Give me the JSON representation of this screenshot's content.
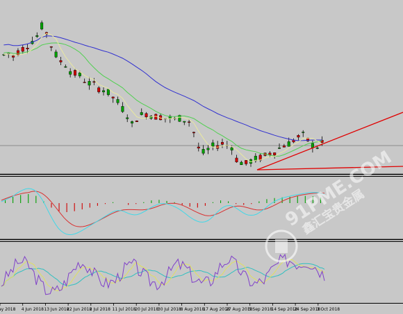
{
  "colors": {
    "background": "#c8c8c8",
    "separator": "#000000",
    "candle_up": "#00a000",
    "candle_down": "#d00000",
    "ma_fast": "#e8e8a0",
    "ma_mid": "#50d050",
    "ma_slow": "#3030d0",
    "trendline": "#e00000",
    "hline": "#8c8c8c",
    "macd_signal": "#d83030",
    "macd_line": "#40d8e8",
    "stoch_k": "#8040c8",
    "stoch_d": "#e0e060",
    "stoch_mid": "#30c0c0"
  },
  "watermark": {
    "text_latin": "91PME.COM",
    "text_cjk": "鑫汇宝贵金属",
    "logo_icon": "91pme-logo-icon"
  },
  "x_axis": {
    "labels": [
      "ay 2018",
      "4 Jun 2018",
      "13 Jun 2018",
      "22 Jun 2018",
      "2 Jul 2018",
      "11 Jul 2018",
      "20 Jul 2018",
      "30 Jul 2018",
      "8 Aug 2018",
      "17 Aug 2018",
      "27 Aug 2018",
      "5 Sep 2018",
      "14 Sep 2018",
      "24 Sep 2018",
      "3 Oct 2018"
    ]
  },
  "chart_data": [
    {
      "type": "candlestick",
      "panel": "price",
      "overlays": [
        "moving-average-fast",
        "moving-average-medium",
        "moving-average-slow",
        "trendline-support",
        "trendline-channel",
        "horizontal-level"
      ],
      "ohlc_trend_normalized": [
        0.74,
        0.75,
        0.73,
        0.76,
        0.78,
        0.8,
        0.83,
        0.86,
        0.92,
        0.88,
        0.8,
        0.74,
        0.7,
        0.68,
        0.64,
        0.62,
        0.61,
        0.58,
        0.56,
        0.55,
        0.53,
        0.52,
        0.5,
        0.47,
        0.44,
        0.4,
        0.36,
        0.3,
        0.34,
        0.36,
        0.37,
        0.36,
        0.35,
        0.35,
        0.34,
        0.34,
        0.33,
        0.34,
        0.33,
        0.32,
        0.25,
        0.15,
        0.12,
        0.14,
        0.16,
        0.17,
        0.18,
        0.17,
        0.16,
        0.08,
        0.06,
        0.05,
        0.07,
        0.08,
        0.09,
        0.1,
        0.12,
        0.13,
        0.15,
        0.17,
        0.18,
        0.2,
        0.22,
        0.23,
        0.2,
        0.17,
        0.16,
        0.18
      ]
    },
    {
      "type": "histogram",
      "panel": "macd",
      "series": [
        {
          "values": [
            0.2,
            0.35,
            0.45,
            0.5,
            0.4,
            0.1,
            -0.25,
            -0.45,
            -0.5,
            -0.45,
            -0.35,
            -0.25,
            -0.15,
            -0.05,
            0.05,
            0.0,
            -0.1,
            -0.05,
            0.05,
            0.15,
            0.18,
            0.12,
            0.05,
            -0.1,
            -0.2,
            -0.25,
            -0.15,
            0.05,
            0.15,
            0.1,
            -0.05,
            -0.1,
            -0.05,
            0.1,
            0.22,
            0.28,
            0.32,
            0.35,
            0.38,
            0.4,
            0.38,
            0.3
          ]
        }
      ]
    },
    {
      "type": "line",
      "panel": "stochastic",
      "series": [
        {
          "values": [
            0.3,
            0.5,
            0.7,
            0.65,
            0.4,
            0.2,
            0.15,
            0.25,
            0.5,
            0.7,
            0.6,
            0.4,
            0.3,
            0.35,
            0.55,
            0.65,
            0.5,
            0.35,
            0.3,
            0.45,
            0.65,
            0.6,
            0.4,
            0.3,
            0.35,
            0.6,
            0.75,
            0.6,
            0.4,
            0.3,
            0.35,
            0.55,
            0.7,
            0.72,
            0.65,
            0.7,
            0.6,
            0.45
          ]
        }
      ]
    }
  ]
}
